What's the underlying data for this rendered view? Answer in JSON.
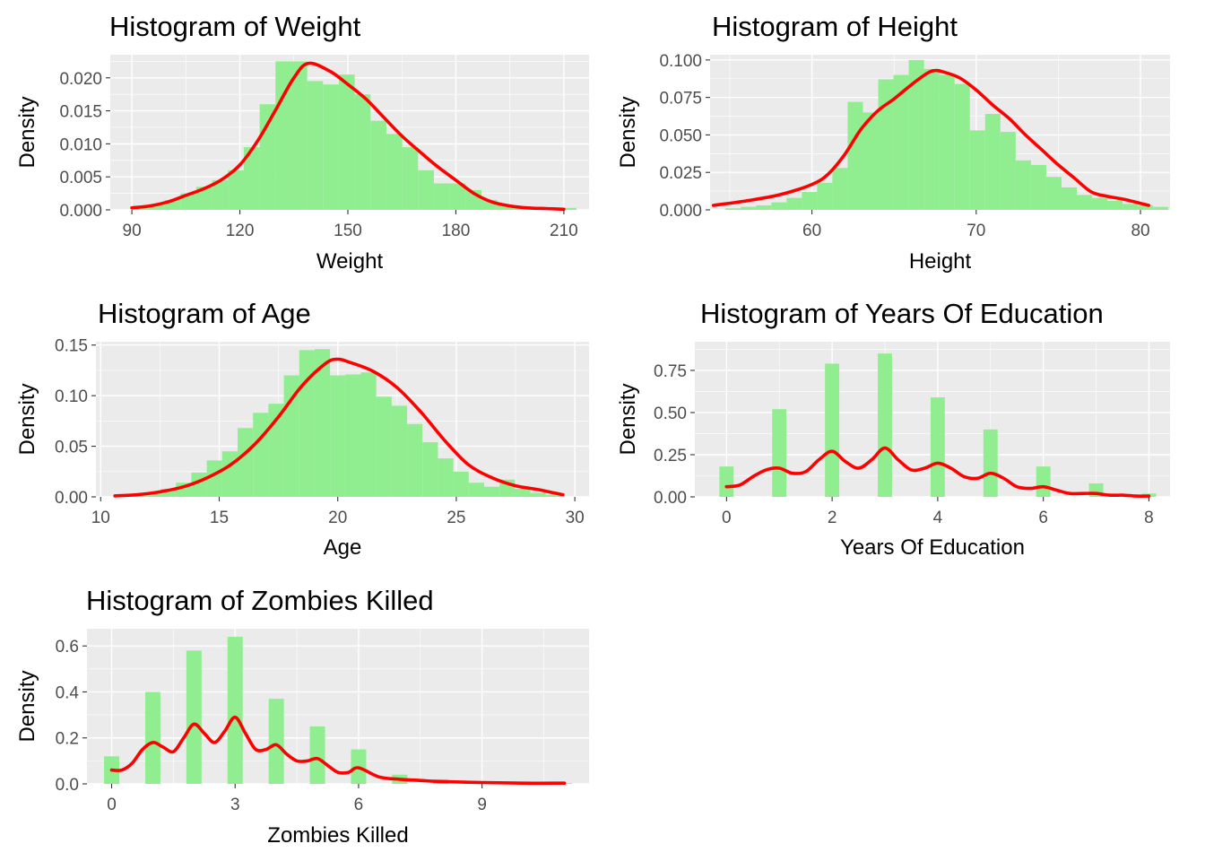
{
  "colors": {
    "bar_fill": "#90ee90",
    "density_line": "#ff0000",
    "panel_background": "#ebebeb",
    "grid": "#ffffff"
  },
  "chart_data": [
    {
      "type": "histogram",
      "title": "Histogram of Weight",
      "xlabel": "Weight",
      "ylabel": "Density",
      "xlim": [
        84,
        217
      ],
      "ylim": [
        0,
        0.0235
      ],
      "xticks": [
        90,
        120,
        150,
        180,
        210
      ],
      "xtick_labels": [
        "90",
        "120",
        "150",
        "180",
        "210"
      ],
      "yticks": [
        0,
        0.005,
        0.01,
        0.015,
        0.02
      ],
      "ytick_labels": [
        "0.000",
        "0.005",
        "0.010",
        "0.015",
        "0.020"
      ],
      "grid": true,
      "bars": {
        "bin_width": 4.4,
        "centers": [
          92.5,
          96.9,
          101.3,
          105.7,
          110.1,
          114.5,
          118.9,
          123.3,
          127.7,
          132.1,
          136.5,
          140.9,
          145.3,
          149.7,
          154.1,
          158.5,
          162.9,
          167.3,
          171.7,
          176.1,
          180.5,
          184.9,
          189.3,
          193.7,
          198.1,
          202.5,
          206.9,
          211.3
        ],
        "density": [
          0.0005,
          0.0008,
          0.0015,
          0.0025,
          0.0035,
          0.0045,
          0.006,
          0.0095,
          0.016,
          0.0225,
          0.0225,
          0.0195,
          0.019,
          0.0205,
          0.0175,
          0.0135,
          0.0115,
          0.0095,
          0.006,
          0.004,
          0.004,
          0.003,
          0.0015,
          0.0008,
          0.0004,
          0.0003,
          0.0002,
          0.0003
        ]
      },
      "density_curve": {
        "x": [
          90,
          95,
          100,
          105,
          110,
          115,
          120,
          125,
          130,
          135,
          139,
          145,
          150,
          155,
          160,
          165,
          170,
          175,
          180,
          185,
          190,
          195,
          200,
          205,
          210
        ],
        "y": [
          0.0003,
          0.0006,
          0.0012,
          0.0022,
          0.0032,
          0.0046,
          0.0068,
          0.0105,
          0.0152,
          0.02,
          0.0222,
          0.021,
          0.019,
          0.0168,
          0.014,
          0.0112,
          0.0088,
          0.0065,
          0.0045,
          0.0025,
          0.0012,
          0.0006,
          0.0003,
          0.0002,
          0.0001
        ]
      }
    },
    {
      "type": "histogram",
      "title": "Histogram of Height",
      "xlabel": "Height",
      "ylabel": "Density",
      "xlim": [
        53.8,
        81.8
      ],
      "ylim": [
        0,
        0.1035
      ],
      "xticks": [
        60,
        70,
        80
      ],
      "xtick_labels": [
        "60",
        "70",
        "80"
      ],
      "yticks": [
        0,
        0.025,
        0.05,
        0.075,
        0.1
      ],
      "ytick_labels": [
        "0.000",
        "0.025",
        "0.050",
        "0.075",
        "0.100"
      ],
      "grid": true,
      "bars": {
        "bin_width": 0.93,
        "centers": [
          55.2,
          56.13,
          57.06,
          57.99,
          58.92,
          59.85,
          60.78,
          61.71,
          62.64,
          63.57,
          64.5,
          65.43,
          66.36,
          67.29,
          68.22,
          69.15,
          70.08,
          71.01,
          71.94,
          72.87,
          73.8,
          74.73,
          75.66,
          76.59,
          77.52,
          78.45,
          79.38,
          80.31,
          81.24
        ],
        "density": [
          0.001,
          0.002,
          0.003,
          0.005,
          0.008,
          0.012,
          0.018,
          0.028,
          0.072,
          0.065,
          0.087,
          0.09,
          0.1,
          0.094,
          0.09,
          0.084,
          0.053,
          0.064,
          0.052,
          0.033,
          0.03,
          0.022,
          0.015,
          0.01,
          0.008,
          0.006,
          0.004,
          0.003,
          0.002
        ]
      },
      "density_curve": {
        "x": [
          54,
          56,
          58,
          60,
          61,
          62,
          63,
          64,
          65,
          66,
          67,
          67.5,
          68,
          69,
          70,
          71,
          72,
          73,
          74,
          75,
          76,
          77,
          78,
          79,
          80.5
        ],
        "y": [
          0.003,
          0.006,
          0.01,
          0.017,
          0.024,
          0.037,
          0.054,
          0.066,
          0.074,
          0.083,
          0.091,
          0.093,
          0.092,
          0.088,
          0.08,
          0.07,
          0.061,
          0.05,
          0.04,
          0.03,
          0.021,
          0.012,
          0.009,
          0.007,
          0.003
        ]
      }
    },
    {
      "type": "histogram",
      "title": "Histogram of Age",
      "xlabel": "Age",
      "ylabel": "Density",
      "xlim": [
        9.8,
        30.6
      ],
      "ylim": [
        0,
        0.1533
      ],
      "xticks": [
        10,
        15,
        20,
        25,
        30
      ],
      "xtick_labels": [
        "10",
        "15",
        "20",
        "25",
        "30"
      ],
      "yticks": [
        0,
        0.05,
        0.1,
        0.15
      ],
      "ytick_labels": [
        "0.00",
        "0.05",
        "0.10",
        "0.15"
      ],
      "grid": true,
      "bars": {
        "bin_width": 0.65,
        "centers": [
          10.9,
          11.55,
          12.2,
          12.85,
          13.5,
          14.15,
          14.8,
          15.45,
          16.1,
          16.75,
          17.4,
          18.05,
          18.7,
          19.35,
          20,
          20.65,
          21.3,
          21.95,
          22.6,
          23.25,
          23.9,
          24.55,
          25.2,
          25.85,
          26.5,
          27.15,
          27.8,
          28.45,
          29.1
        ],
        "density": [
          0.001,
          0.002,
          0.004,
          0.008,
          0.014,
          0.024,
          0.036,
          0.045,
          0.068,
          0.083,
          0.092,
          0.12,
          0.145,
          0.146,
          0.12,
          0.121,
          0.123,
          0.099,
          0.09,
          0.072,
          0.054,
          0.038,
          0.025,
          0.014,
          0.01,
          0.017,
          0.008,
          0.004,
          0.002
        ]
      },
      "density_curve": {
        "x": [
          10.6,
          11.5,
          12.5,
          13.5,
          14.5,
          15.5,
          16.5,
          17.5,
          18.5,
          19.5,
          20,
          20.5,
          21.5,
          22.5,
          23.5,
          24.5,
          25.5,
          26.5,
          27.5,
          28.5,
          29.5
        ],
        "y": [
          0.001,
          0.002,
          0.005,
          0.01,
          0.019,
          0.032,
          0.052,
          0.079,
          0.11,
          0.132,
          0.136,
          0.133,
          0.124,
          0.108,
          0.084,
          0.056,
          0.032,
          0.019,
          0.011,
          0.007,
          0.002
        ]
      }
    },
    {
      "type": "histogram",
      "title": "Histogram of Years Of Education",
      "xlabel": "Years Of Education",
      "ylabel": "Density",
      "xlim": [
        -0.6,
        8.4
      ],
      "ylim": [
        0,
        0.92
      ],
      "xticks": [
        0,
        2,
        4,
        6,
        8
      ],
      "xtick_labels": [
        "0",
        "2",
        "4",
        "6",
        "8"
      ],
      "yticks": [
        0,
        0.25,
        0.5,
        0.75
      ],
      "ytick_labels": [
        "0.00",
        "0.25",
        "0.50",
        "0.75"
      ],
      "grid": true,
      "bars": {
        "bin_width": 0.27,
        "centers": [
          0,
          1,
          2,
          3,
          4,
          5,
          6,
          7,
          8
        ],
        "density": [
          0.18,
          0.52,
          0.79,
          0.85,
          0.59,
          0.4,
          0.18,
          0.08,
          0.02
        ]
      },
      "density_curve": {
        "x": [
          0,
          0.25,
          0.5,
          0.75,
          1,
          1.25,
          1.5,
          1.75,
          2,
          2.25,
          2.5,
          2.75,
          3,
          3.25,
          3.5,
          3.75,
          4,
          4.25,
          4.5,
          4.75,
          5,
          5.25,
          5.5,
          5.75,
          6,
          6.25,
          6.5,
          6.75,
          7,
          7.25,
          7.5,
          7.75,
          8
        ],
        "y": [
          0.06,
          0.07,
          0.12,
          0.16,
          0.17,
          0.14,
          0.15,
          0.22,
          0.27,
          0.21,
          0.17,
          0.22,
          0.29,
          0.22,
          0.16,
          0.17,
          0.2,
          0.17,
          0.12,
          0.11,
          0.14,
          0.11,
          0.06,
          0.05,
          0.06,
          0.04,
          0.02,
          0.02,
          0.02,
          0.01,
          0.01,
          0.005,
          0.005
        ]
      }
    },
    {
      "type": "histogram",
      "title": "Histogram of Zombies Killed",
      "xlabel": "Zombies Killed",
      "ylabel": "Density",
      "xlim": [
        -0.6,
        11.6
      ],
      "ylim": [
        0,
        0.675
      ],
      "xticks": [
        0,
        3,
        6,
        9
      ],
      "xtick_labels": [
        "0",
        "3",
        "6",
        "9"
      ],
      "yticks": [
        0,
        0.2,
        0.4,
        0.6
      ],
      "ytick_labels": [
        "0.0",
        "0.2",
        "0.4",
        "0.6"
      ],
      "grid": true,
      "bars": {
        "bin_width": 0.37,
        "centers": [
          0,
          1,
          2,
          3,
          4,
          5,
          6,
          7,
          8,
          9,
          10,
          11
        ],
        "density": [
          0.12,
          0.4,
          0.58,
          0.64,
          0.37,
          0.25,
          0.15,
          0.04,
          0.02,
          0.005,
          0.003,
          0.003
        ]
      },
      "density_curve": {
        "x": [
          0,
          0.25,
          0.5,
          0.75,
          1,
          1.25,
          1.5,
          1.75,
          2,
          2.25,
          2.5,
          2.75,
          3,
          3.25,
          3.5,
          3.75,
          4,
          4.25,
          4.5,
          4.75,
          5,
          5.25,
          5.5,
          5.75,
          6,
          6.5,
          7,
          7.5,
          8,
          9,
          10,
          11
        ],
        "y": [
          0.06,
          0.06,
          0.09,
          0.15,
          0.18,
          0.16,
          0.14,
          0.2,
          0.26,
          0.22,
          0.18,
          0.23,
          0.29,
          0.22,
          0.15,
          0.15,
          0.17,
          0.13,
          0.1,
          0.1,
          0.11,
          0.08,
          0.05,
          0.05,
          0.07,
          0.03,
          0.02,
          0.015,
          0.01,
          0.006,
          0.003,
          0.003
        ]
      }
    }
  ]
}
